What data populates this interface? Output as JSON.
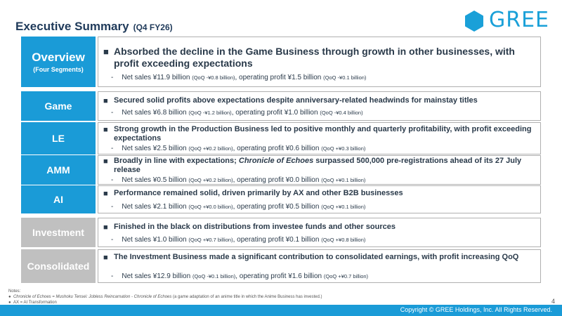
{
  "header": {
    "title": "Executive Summary",
    "subtitle": "(Q4 FY26)",
    "logo_text": "GREE"
  },
  "rows": [
    {
      "label": "Overview",
      "label_sub": "(Four Segments)",
      "label_color": "#1a9bd7",
      "heading": "Absorbed the decline in the Game Business through growth in other businesses, with profit exceeding expectations",
      "d1": "Net sales ¥11.9 billion ",
      "d1_mini": "(QoQ -¥0.8 billion)",
      "d2": ", operating profit ¥1.5 billion ",
      "d2_mini": "(QoQ -¥0.1 billion)"
    },
    {
      "label": "Game",
      "label_color": "#1a9bd7",
      "heading": "Secured solid profits above expectations despite anniversary-related headwinds for mainstay titles",
      "d1": "Net sales ¥6.8 billion ",
      "d1_mini": "(QoQ -¥1.2 billion)",
      "d2": ", operating profit ¥1.0 billion ",
      "d2_mini": "(QoQ -¥0.4 billion)"
    },
    {
      "label": "LE",
      "label_color": "#1a9bd7",
      "heading": "Strong growth in the Production Business led to positive monthly and quarterly profitability, with profit exceeding expectations",
      "d1": "Net sales ¥2.5 billion ",
      "d1_mini": "(QoQ +¥0.2 billion)",
      "d2": ", operating profit ¥0.6 billion ",
      "d2_mini": "(QoQ +¥0.3 billion)"
    },
    {
      "label": "AMM",
      "label_color": "#1a9bd7",
      "heading_pre": "Broadly in line with expectations; ",
      "heading_italic": "Chronicle of Echoes",
      "heading_post": " surpassed 500,000 pre-registrations ahead of its 27 July release",
      "d1": "Net sales ¥0.5 billion ",
      "d1_mini": "(QoQ +¥0.2 billion)",
      "d2": ", operating profit ¥0.0 billion ",
      "d2_mini": "(QoQ +¥0.1 billion)"
    },
    {
      "label": "AI",
      "label_color": "#1a9bd7",
      "heading": "Performance remained solid, driven primarily by AX and other B2B businesses",
      "d1": "Net sales ¥2.1 billion ",
      "d1_mini": "(QoQ +¥0.0 billion)",
      "d2": ", operating profit ¥0.5 billion ",
      "d2_mini": "(QoQ +¥0.1 billion)"
    },
    {
      "label": "Investment",
      "label_color": "#c0c0c0",
      "heading": "Finished in the black on distributions from investee funds and other sources",
      "d1": "Net sales ¥1.0 billion ",
      "d1_mini": "(QoQ +¥0.7 billion)",
      "d2": ", operating profit ¥0.1 billion ",
      "d2_mini": "(QoQ +¥0.8 billion)"
    },
    {
      "label": "Consolidated",
      "label_color": "#c0c0c0",
      "heading": "The Investment Business made a significant contribution to consolidated earnings, with profit increasing QoQ",
      "d1": "Net sales ¥12.9 billion ",
      "d1_mini": "(QoQ -¥0.1 billion)",
      "d2": ", operating profit ¥1.6 billion ",
      "d2_mini": "(QoQ +¥0.7 billion)"
    }
  ],
  "notes": {
    "title": "Notes:",
    "n1_italic_a": "Chronicle of Echoes",
    "n1_mid": " = ",
    "n1_italic_b": "Mushoku Tensei: Jobless Reincarnation - Chronicle of Echoes",
    "n1_post": " (a game adaptation of an anime title in which the Anime Business has invested.)",
    "n2": "AX = AI Transformation"
  },
  "page_number": "4",
  "copyright": "Copyright © GREE Holdings, Inc. All Rights Reserved.",
  "colors": {
    "accent": "#1a9bd7",
    "inactive": "#c0c0c0",
    "title": "#1f3a5a"
  }
}
